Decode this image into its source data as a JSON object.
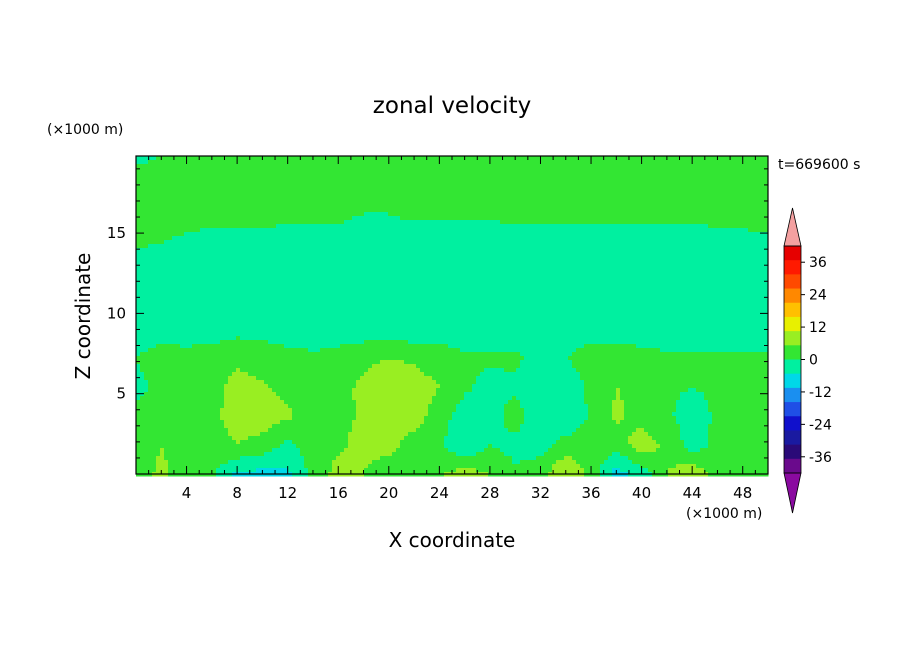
{
  "chart_data": {
    "type": "heatmap",
    "title": "zonal velocity",
    "xlabel": "X coordinate",
    "ylabel": "Z coordinate",
    "x_unit": "(×1000 m)",
    "y_unit": "(×1000 m)",
    "time_label": "t=669600 s",
    "xlim": [
      0,
      50
    ],
    "ylim": [
      0,
      19.8
    ],
    "x_ticks": [
      4,
      8,
      12,
      16,
      20,
      24,
      28,
      32,
      36,
      40,
      44,
      48
    ],
    "y_ticks": [
      5,
      10,
      15
    ],
    "colorbar": {
      "tick_values": [
        36,
        24,
        12,
        0,
        -12,
        -24,
        -36
      ],
      "levels": [
        -42,
        -36,
        -30,
        -24,
        -18,
        -12,
        -6,
        0,
        6,
        12,
        18,
        24,
        30,
        36,
        42
      ],
      "colors": [
        "#6a0a8c",
        "#2a0a78",
        "#1a1aa0",
        "#1010cc",
        "#1f4fe6",
        "#1a8ff0",
        "#00d8e8",
        "#00f0a0",
        "#33e633",
        "#99ee22",
        "#e8f000",
        "#ffc000",
        "#ff8800",
        "#ff4a00",
        "#ff1a00",
        "#e60000"
      ],
      "over_color": "#f4a0a0",
      "under_color": "#8a0aa0"
    },
    "field_description_levels": "approximate contour field; values in same units as colorbar",
    "field": {
      "nx": 26,
      "nz": 12,
      "x_step": 2,
      "z_values": [
        0,
        1.8,
        3.6,
        5.4,
        7.2,
        9,
        10.8,
        12.6,
        14.4,
        16.2,
        18,
        19.8
      ],
      "values": [
        [
          4,
          7,
          4,
          1,
          -7,
          -8,
          -7,
          2,
          8,
          6,
          2,
          3,
          5,
          9,
          6,
          1,
          4,
          12,
          4,
          -9,
          -3,
          6,
          10,
          4,
          1,
          3
        ],
        [
          3,
          6,
          3,
          4,
          6,
          4,
          -2,
          4,
          5,
          8,
          8,
          3,
          1,
          -6,
          0,
          -2,
          -3,
          3,
          3,
          3,
          9,
          5,
          -3,
          2,
          3,
          4
        ],
        [
          1,
          2,
          4,
          5,
          8,
          9,
          7,
          3,
          4,
          7,
          10,
          9,
          3,
          -3,
          -3,
          3,
          -5,
          -6,
          1,
          7,
          4,
          1,
          -3,
          1,
          2,
          2
        ],
        [
          -1,
          1,
          2,
          4,
          8,
          7,
          4,
          2,
          3,
          8,
          12,
          9,
          6,
          1,
          -2,
          -1,
          -4,
          -5,
          2,
          6,
          5,
          1,
          0,
          1,
          1,
          1
        ],
        [
          0,
          2,
          2,
          3,
          5,
          3,
          2,
          1,
          2,
          4,
          6,
          5,
          3,
          1,
          1,
          1,
          -2,
          0,
          3,
          3,
          2,
          1,
          1,
          1,
          1,
          1
        ],
        [
          -2,
          -2,
          -3,
          -3,
          -2,
          -2,
          -3,
          -3,
          -3,
          -3,
          -4,
          -4,
          -3,
          -3,
          -3,
          -3,
          -3,
          -3,
          -3,
          -3,
          -3,
          -3,
          -3,
          -3,
          -3,
          -3
        ],
        [
          -2,
          -3,
          -4,
          -4,
          -4,
          -5,
          -5,
          -4,
          -4,
          -5,
          -6,
          -6,
          -6,
          -6,
          -6,
          -6,
          -6,
          -6,
          -6,
          -5,
          -5,
          -5,
          -5,
          -5,
          -5,
          -5
        ],
        [
          -3,
          -4,
          -4,
          -5,
          -5,
          -5,
          -5,
          -5,
          -5,
          -5,
          -5,
          -5,
          -5,
          -5,
          -5,
          -5,
          -5,
          -5,
          -5,
          -5,
          -5,
          -5,
          -5,
          -5,
          -5,
          -5
        ],
        [
          1,
          0,
          -1,
          -2,
          -2,
          -2,
          -2,
          -2,
          -2,
          -3,
          -3,
          -3,
          -3,
          -3,
          -3,
          -2,
          -2,
          -2,
          -2,
          -2,
          -2,
          -2,
          -2,
          -1,
          -1,
          -1
        ],
        [
          2,
          2,
          2,
          2,
          2,
          2,
          1,
          1,
          1,
          0,
          0,
          1,
          1,
          1,
          1,
          1,
          1,
          1,
          1,
          1,
          1,
          1,
          1,
          1,
          1,
          2
        ],
        [
          2,
          2,
          2,
          2,
          2,
          2,
          2,
          3,
          3,
          3,
          5,
          5,
          4,
          4,
          3,
          2,
          2,
          2,
          2,
          2,
          2,
          2,
          2,
          2,
          2,
          2
        ],
        [
          -1,
          0,
          1,
          1,
          1,
          1,
          1,
          1,
          1,
          2,
          2,
          2,
          3,
          3,
          3,
          3,
          2,
          2,
          2,
          2,
          2,
          1,
          1,
          1,
          0,
          0
        ]
      ]
    }
  }
}
